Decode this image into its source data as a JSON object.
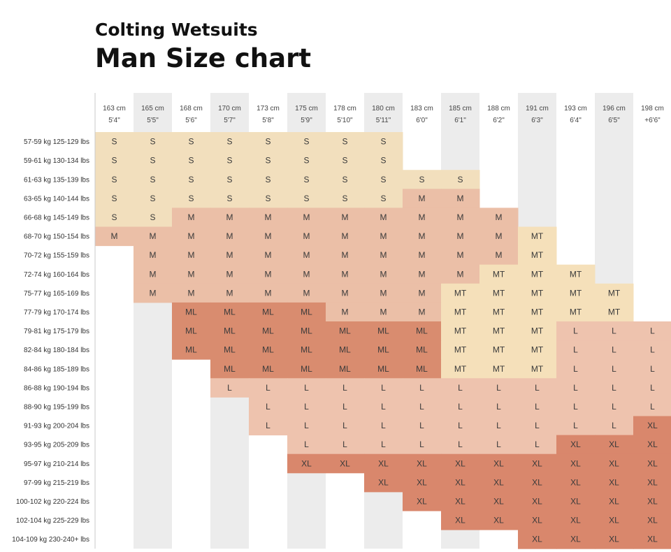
{
  "header": {
    "brand": "Colting Wetsuits",
    "title": "Man Size chart"
  },
  "chart_data": {
    "type": "table",
    "columns": [
      {
        "cm": "163 cm",
        "ft": "5'4\""
      },
      {
        "cm": "165 cm",
        "ft": "5'5\""
      },
      {
        "cm": "168 cm",
        "ft": "5'6\""
      },
      {
        "cm": "170 cm",
        "ft": "5'7\""
      },
      {
        "cm": "173 cm",
        "ft": "5'8\""
      },
      {
        "cm": "175 cm",
        "ft": "5'9\""
      },
      {
        "cm": "178 cm",
        "ft": "5'10\""
      },
      {
        "cm": "180 cm",
        "ft": "5'11\""
      },
      {
        "cm": "183 cm",
        "ft": "6'0\""
      },
      {
        "cm": "185 cm",
        "ft": "6'1\""
      },
      {
        "cm": "188 cm",
        "ft": "6'2\""
      },
      {
        "cm": "191 cm",
        "ft": "6'3\""
      },
      {
        "cm": "193 cm",
        "ft": "6'4\""
      },
      {
        "cm": "196 cm",
        "ft": "6'5\""
      },
      {
        "cm": "198 cm",
        "ft": "+6'6\""
      }
    ],
    "rows": [
      {
        "label": "57-59 kg 125-129 lbs",
        "cells": [
          "S",
          "S",
          "S",
          "S",
          "S",
          "S",
          "S",
          "S",
          "",
          "",
          "",
          "",
          "",
          "",
          ""
        ]
      },
      {
        "label": "59-61 kg 130-134 lbs",
        "cells": [
          "S",
          "S",
          "S",
          "S",
          "S",
          "S",
          "S",
          "S",
          "",
          "",
          "",
          "",
          "",
          "",
          ""
        ]
      },
      {
        "label": "61-63 kg 135-139 lbs",
        "cells": [
          "S",
          "S",
          "S",
          "S",
          "S",
          "S",
          "S",
          "S",
          "S",
          "S",
          "",
          "",
          "",
          "",
          ""
        ]
      },
      {
        "label": "63-65 kg 140-144 lbs",
        "cells": [
          "S",
          "S",
          "S",
          "S",
          "S",
          "S",
          "S",
          "S",
          "M",
          "M",
          "",
          "",
          "",
          "",
          ""
        ]
      },
      {
        "label": "66-68 kg 145-149 lbs",
        "cells": [
          "S",
          "S",
          "M",
          "M",
          "M",
          "M",
          "M",
          "M",
          "M",
          "M",
          "M",
          "",
          "",
          "",
          ""
        ]
      },
      {
        "label": "68-70 kg 150-154 lbs",
        "cells": [
          "M",
          "M",
          "M",
          "M",
          "M",
          "M",
          "M",
          "M",
          "M",
          "M",
          "M",
          "MT",
          "",
          "",
          ""
        ]
      },
      {
        "label": "70-72 kg 155-159 lbs",
        "cells": [
          "",
          "M",
          "M",
          "M",
          "M",
          "M",
          "M",
          "M",
          "M",
          "M",
          "M",
          "MT",
          "",
          "",
          ""
        ]
      },
      {
        "label": "72-74 kg 160-164 lbs",
        "cells": [
          "",
          "M",
          "M",
          "M",
          "M",
          "M",
          "M",
          "M",
          "M",
          "M",
          "MT",
          "MT",
          "MT",
          "",
          ""
        ]
      },
      {
        "label": "75-77 kg 165-169 lbs",
        "cells": [
          "",
          "M",
          "M",
          "M",
          "M",
          "M",
          "M",
          "M",
          "M",
          "MT",
          "MT",
          "MT",
          "MT",
          "MT",
          ""
        ]
      },
      {
        "label": "77-79 kg 170-174 lbs",
        "cells": [
          "",
          "",
          "ML",
          "ML",
          "ML",
          "ML",
          "M",
          "M",
          "M",
          "MT",
          "MT",
          "MT",
          "MT",
          "MT",
          ""
        ]
      },
      {
        "label": "79-81 kg 175-179 lbs",
        "cells": [
          "",
          "",
          "ML",
          "ML",
          "ML",
          "ML",
          "ML",
          "ML",
          "ML",
          "MT",
          "MT",
          "MT",
          "L",
          "L",
          "L"
        ]
      },
      {
        "label": "82-84 kg 180-184 lbs",
        "cells": [
          "",
          "",
          "ML",
          "ML",
          "ML",
          "ML",
          "ML",
          "ML",
          "ML",
          "MT",
          "MT",
          "MT",
          "L",
          "L",
          "L"
        ]
      },
      {
        "label": "84-86 kg 185-189 lbs",
        "cells": [
          "",
          "",
          "",
          "ML",
          "ML",
          "ML",
          "ML",
          "ML",
          "ML",
          "MT",
          "MT",
          "MT",
          "L",
          "L",
          "L"
        ]
      },
      {
        "label": "86-88 kg 190-194 lbs",
        "cells": [
          "",
          "",
          "",
          "L",
          "L",
          "L",
          "L",
          "L",
          "L",
          "L",
          "L",
          "L",
          "L",
          "L",
          "L"
        ]
      },
      {
        "label": "88-90 kg 195-199 lbs",
        "cells": [
          "",
          "",
          "",
          "",
          "L",
          "L",
          "L",
          "L",
          "L",
          "L",
          "L",
          "L",
          "L",
          "L",
          "L"
        ]
      },
      {
        "label": "91-93 kg 200-204 lbs",
        "cells": [
          "",
          "",
          "",
          "",
          "L",
          "L",
          "L",
          "L",
          "L",
          "L",
          "L",
          "L",
          "L",
          "L",
          "XL"
        ]
      },
      {
        "label": "93-95 kg 205-209 lbs",
        "cells": [
          "",
          "",
          "",
          "",
          "",
          "L",
          "L",
          "L",
          "L",
          "L",
          "L",
          "L",
          "XL",
          "XL",
          "XL"
        ]
      },
      {
        "label": "95-97 kg 210-214 lbs",
        "cells": [
          "",
          "",
          "",
          "",
          "",
          "XL",
          "XL",
          "XL",
          "XL",
          "XL",
          "XL",
          "XL",
          "XL",
          "XL",
          "XL"
        ]
      },
      {
        "label": "97-99 kg 215-219 lbs",
        "cells": [
          "",
          "",
          "",
          "",
          "",
          "",
          "",
          "XL",
          "XL",
          "XL",
          "XL",
          "XL",
          "XL",
          "XL",
          "XL"
        ]
      },
      {
        "label": "100-102 kg 220-224 lbs",
        "cells": [
          "",
          "",
          "",
          "",
          "",
          "",
          "",
          "",
          "XL",
          "XL",
          "XL",
          "XL",
          "XL",
          "XL",
          "XL"
        ]
      },
      {
        "label": "102-104 kg 225-229 lbs",
        "cells": [
          "",
          "",
          "",
          "",
          "",
          "",
          "",
          "",
          "",
          "XL",
          "XL",
          "XL",
          "XL",
          "XL",
          "XL"
        ]
      },
      {
        "label": "104-109 kg 230-240+ lbs",
        "cells": [
          "",
          "",
          "",
          "",
          "",
          "",
          "",
          "",
          "",
          "",
          "",
          "XL",
          "XL",
          "XL",
          "XL"
        ]
      }
    ],
    "size_colors": {
      "S": "#f2dfbd",
      "M": "#ebbfa7",
      "MT": "#f5e0ba",
      "ML": "#d98c6f",
      "L": "#eec3ae",
      "XL": "#d9876c"
    },
    "stripe_colors": {
      "light": "#ffffff",
      "dark": "#ececec"
    }
  }
}
